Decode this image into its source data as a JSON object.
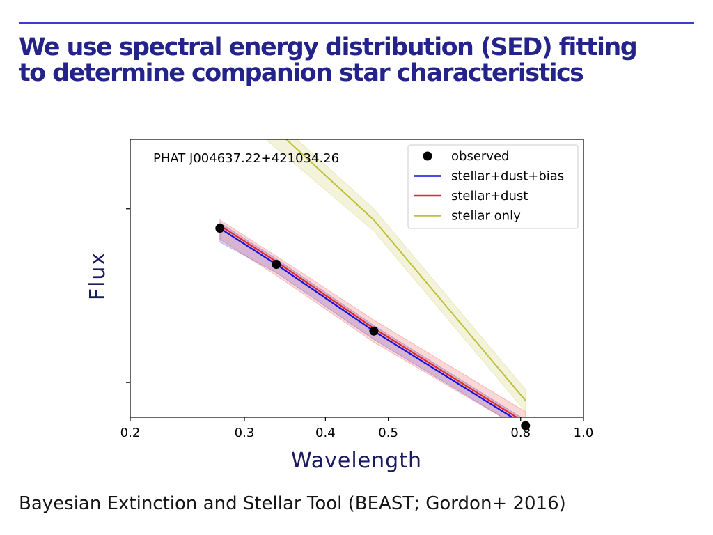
{
  "slide": {
    "title_line1": "We use spectral energy distribution (SED) fitting",
    "title_line2": "to determine companion star characteristics",
    "footer": "Bayesian Extinction and Stellar Tool (BEAST; Gordon+ 2016)"
  },
  "colors": {
    "rule": "#3a3ad6",
    "title": "#23238a",
    "axis_label": "#1a1a5e"
  },
  "chart_data": {
    "type": "line",
    "annotation": "PHAT J004637.22+421034.26",
    "xlabel": "Wavelength",
    "ylabel": "Flux",
    "xscale": "log",
    "xlim": [
      0.2,
      1.0
    ],
    "ylim": [
      0.0,
      1.0
    ],
    "x_ticks": [
      0.2,
      0.3,
      0.4,
      0.5,
      0.8,
      1.0
    ],
    "x_tick_labels": [
      "0.2",
      "0.3",
      "0.4",
      "0.5",
      "0.8",
      "1.0"
    ],
    "y_ticks": [
      0.75,
      0.125
    ],
    "grid": false,
    "legend_position": "top-right",
    "series": [
      {
        "name": "observed",
        "kind": "scatter",
        "color": "#000000",
        "x": [
          0.275,
          0.336,
          0.475,
          0.814
        ],
        "y": [
          0.68,
          0.55,
          0.31,
          -0.03
        ]
      },
      {
        "name": "stellar+dust+bias",
        "kind": "line",
        "color": "#1010e0",
        "x": [
          0.275,
          0.336,
          0.475,
          0.814
        ],
        "y": [
          0.68,
          0.55,
          0.31,
          -0.03
        ],
        "band": [
          [
            0.63,
            0.7
          ],
          [
            0.52,
            0.57
          ],
          [
            0.28,
            0.33
          ],
          [
            -0.05,
            -0.01
          ]
        ]
      },
      {
        "name": "stellar+dust",
        "kind": "line",
        "color": "#e8281e",
        "x": [
          0.275,
          0.336,
          0.475,
          0.814
        ],
        "y": [
          0.69,
          0.56,
          0.32,
          -0.02
        ],
        "band": [
          [
            0.64,
            0.71
          ],
          [
            0.51,
            0.58
          ],
          [
            0.27,
            0.35
          ],
          [
            -0.05,
            0.02
          ]
        ]
      },
      {
        "name": "stellar only",
        "kind": "line",
        "color": "#bfbf3a",
        "x": [
          0.275,
          0.475,
          0.814
        ],
        "y": [
          1.22,
          0.71,
          0.06
        ],
        "band": [
          [
            1.14,
            1.25
          ],
          [
            0.67,
            0.75
          ],
          [
            0.02,
            0.1
          ]
        ]
      }
    ]
  }
}
